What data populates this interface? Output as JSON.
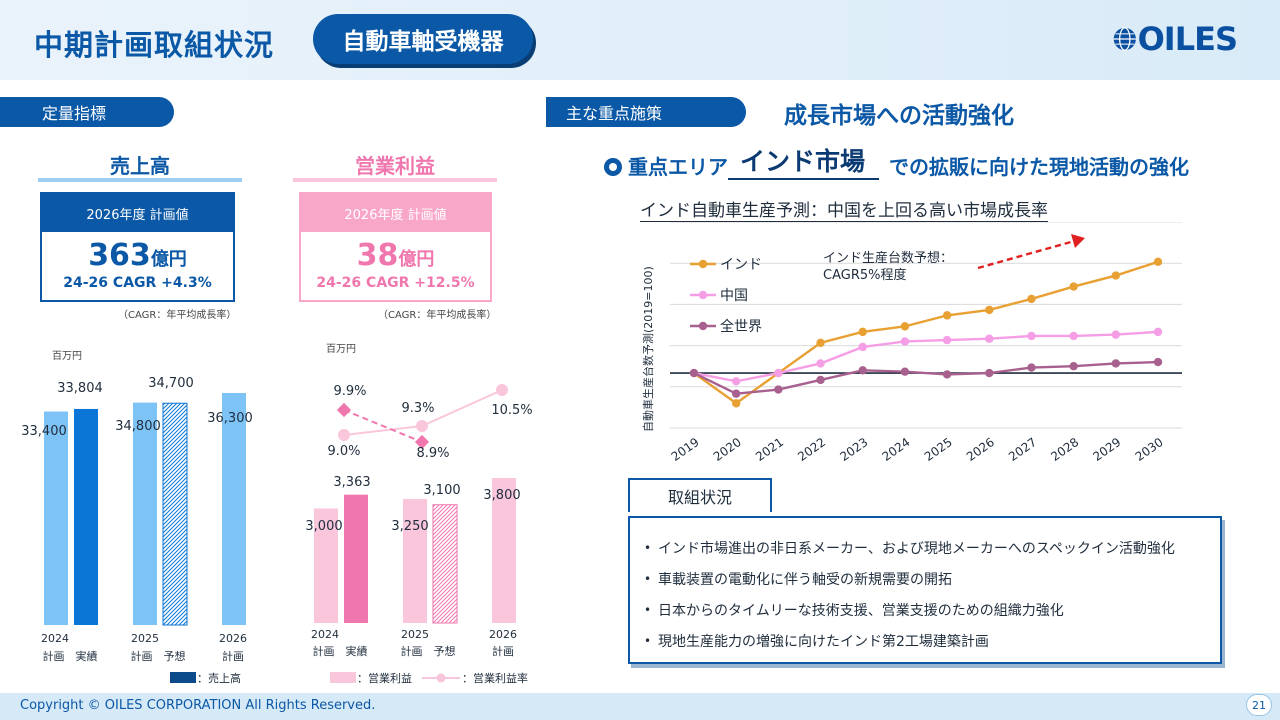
{
  "header": {
    "title": "中期計画取組状況",
    "category": "自動車軸受機器",
    "logo": "OILES"
  },
  "left": {
    "tag": "定量指標",
    "sales": {
      "heading": "売上高",
      "plan_label": "2026年度 計画値",
      "value": "363",
      "unit": "億円",
      "cagr": "24-26 CAGR +4.3%",
      "note": "（CAGR：年平均成長率）"
    },
    "profit": {
      "heading": "営業利益",
      "plan_label": "2026年度 計画値",
      "value": "38",
      "unit": "億円",
      "cagr": "24-26 CAGR +12.5%",
      "note": "（CAGR：年平均成長率）"
    },
    "unit_label": "百万円",
    "legend_sales": "：売上高",
    "legend_profit": "：営業利益",
    "legend_margin": "：営業利益率",
    "x_years": [
      "2024",
      "2025",
      "2026"
    ],
    "x_sub": [
      "計画　実績",
      "計画　予想",
      "計画"
    ]
  },
  "right": {
    "tag": "主な重点施策",
    "headline": "成長市場への活動強化",
    "focus_prefix": "重点エリア",
    "focus_area": "インド市場",
    "focus_suffix": "での拡販に向けた現地活動の強化",
    "chart_title": "インド自動車生産予測：中国を上回る高い市場成長率",
    "annotation_line1": "インド生産台数予想：",
    "annotation_line2": "CAGR5%程度",
    "torikumi_label": "取組状況",
    "bullets": [
      "インド市場進出の非日系メーカー、および現地メーカーへのスペックイン活動強化",
      "車載装置の電動化に伴う軸受の新規需要の開拓",
      "日本からのタイムリーな技術支援、営業支援のための組織力強化",
      "現地生産能力の増強に向けたインド第2工場建築計画"
    ]
  },
  "footer": {
    "copyright": "Copyright © OILES CORPORATION All Rights Reserved.",
    "page": "21"
  },
  "colors": {
    "brand": "#0b58a6",
    "sales_light": "#7ec3f5",
    "sales_dark": "#0b76d6",
    "profit_light": "#f9c6dc",
    "profit_dark": "#f077ae",
    "india": "#e8a032",
    "china": "#f59ee6",
    "world": "#a8608e"
  },
  "chart_data": [
    {
      "type": "bar",
      "unit": "百万円",
      "categories": [
        "2024 計画",
        "2024 実績",
        "2025 計画",
        "2025 予想",
        "2026 計画"
      ],
      "values": [
        33400,
        33804,
        34800,
        34700,
        36300
      ],
      "labels": [
        "33,400",
        "33,804",
        "34,800",
        "34,700",
        "36,300"
      ],
      "series_name": "売上高"
    },
    {
      "type": "bar",
      "unit": "百万円",
      "categories": [
        "2024 計画",
        "2024 実績",
        "2025 計画",
        "2025 予想",
        "2026 計画"
      ],
      "values": [
        3000,
        3363,
        3250,
        3100,
        3800
      ],
      "labels": [
        "3,000",
        "3,363",
        "3,250",
        "3,100",
        "3,800"
      ],
      "series_name": "営業利益",
      "margin_series": {
        "name": "営業利益率",
        "plan_values": [
          9.0,
          9.3,
          10.5
        ],
        "plan_labels": [
          "9.0%",
          "9.3%",
          "10.5%"
        ],
        "actual_values": [
          9.9,
          8.9
        ],
        "actual_labels": [
          "9.9%",
          "8.9%"
        ]
      }
    },
    {
      "type": "line",
      "ylabel": "自動車生産台数予測(2019=100)",
      "x": [
        "2019",
        "2020",
        "2021",
        "2022",
        "2023",
        "2024",
        "2025",
        "2026",
        "2027",
        "2028",
        "2029",
        "2030"
      ],
      "series": [
        {
          "name": "インド",
          "values": [
            100,
            78,
            100,
            122,
            130,
            134,
            142,
            146,
            154,
            163,
            171,
            181
          ]
        },
        {
          "name": "中国",
          "values": [
            100,
            94,
            100,
            107,
            119,
            123,
            124,
            125,
            127,
            127,
            128,
            130
          ]
        },
        {
          "name": "全世界",
          "values": [
            100,
            85,
            88,
            95,
            102,
            101,
            99,
            100,
            104,
            105,
            107,
            108
          ]
        }
      ],
      "ylim": [
        60,
        210
      ]
    }
  ]
}
